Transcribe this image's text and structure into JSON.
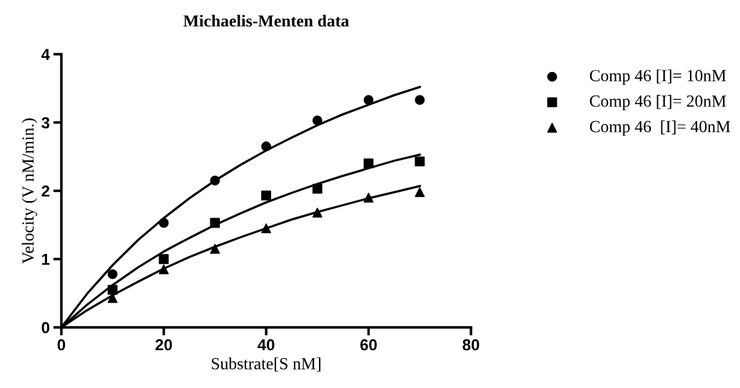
{
  "chart_data": {
    "type": "scatter",
    "title": "Michaelis-Menten data",
    "xlabel": "Substrate[S nM]",
    "ylabel": "Velocity (V nM/min.)",
    "x": [
      10,
      20,
      30,
      40,
      50,
      60,
      70
    ],
    "xlim": [
      0,
      80
    ],
    "xticks": [
      0,
      20,
      40,
      60,
      80
    ],
    "ylim": [
      0,
      4
    ],
    "yticks": [
      0,
      1,
      2,
      3,
      4
    ],
    "grid": false,
    "legend": "right",
    "series": [
      {
        "name": "Comp 46 [I]= 10nM",
        "color": "#000000",
        "marker": "circle",
        "values": [
          0.78,
          1.53,
          2.15,
          2.65,
          3.03,
          3.33,
          3.33
        ]
      },
      {
        "name": "Comp 46 [I]= 20nM",
        "color": "#000000",
        "marker": "square",
        "values": [
          0.55,
          1.0,
          1.53,
          1.93,
          2.03,
          2.4,
          2.43
        ]
      },
      {
        "name": "Comp 46  [I]= 40nM",
        "color": "#000000",
        "marker": "triangle",
        "values": [
          0.43,
          0.85,
          1.15,
          1.45,
          1.68,
          1.9,
          1.98
        ]
      },
      {
        "type": "line",
        "color": "#000000",
        "marker": "none",
        "line_style": "solid",
        "x": [
          0,
          5,
          10,
          15,
          20,
          25,
          30,
          35,
          40,
          45,
          50,
          55,
          60,
          65,
          70
        ],
        "values": [
          0,
          0.49,
          0.91,
          1.28,
          1.6,
          1.89,
          2.15,
          2.38,
          2.59,
          2.78,
          2.96,
          3.12,
          3.26,
          3.4,
          3.52
        ]
      },
      {
        "type": "line",
        "color": "#000000",
        "marker": "none",
        "line_style": "solid",
        "x": [
          0,
          5,
          10,
          15,
          20,
          25,
          30,
          35,
          40,
          45,
          50,
          55,
          60,
          65,
          70
        ],
        "values": [
          0,
          0.33,
          0.62,
          0.88,
          1.11,
          1.31,
          1.5,
          1.67,
          1.83,
          1.97,
          2.1,
          2.22,
          2.33,
          2.44,
          2.53
        ]
      },
      {
        "type": "line",
        "color": "#000000",
        "marker": "none",
        "line_style": "solid",
        "x": [
          0,
          5,
          10,
          15,
          20,
          25,
          30,
          35,
          40,
          45,
          50,
          55,
          60,
          65,
          70
        ],
        "values": [
          0,
          0.25,
          0.47,
          0.67,
          0.86,
          1.03,
          1.18,
          1.32,
          1.45,
          1.58,
          1.69,
          1.79,
          1.89,
          1.98,
          2.07
        ]
      }
    ]
  }
}
